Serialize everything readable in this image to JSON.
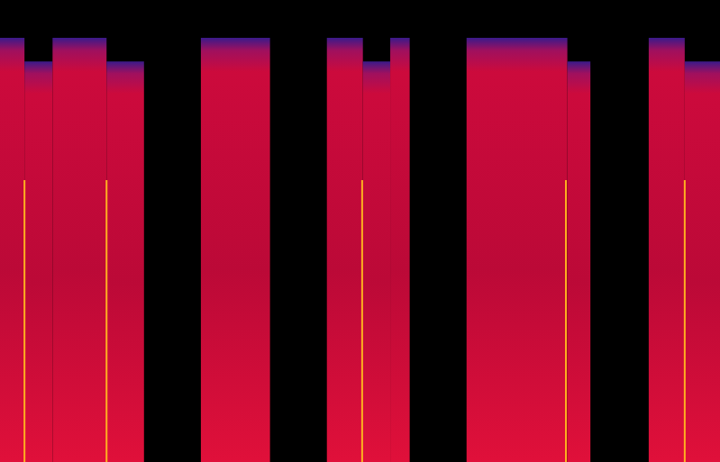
{
  "chart_data": {
    "type": "spectrogram",
    "xlim": [
      0,
      100
    ],
    "ylim": [
      0,
      100
    ],
    "tick_labels": false,
    "color": "#cc0a3c",
    "blocks": [
      {
        "start": 0,
        "end": 3.4,
        "top": 91.8
      },
      {
        "start": 3.4,
        "end": 7.3,
        "top": 86.7
      },
      {
        "start": 7.3,
        "end": 14.8,
        "top": 91.8
      },
      {
        "start": 14.8,
        "end": 20.0,
        "top": 86.7
      },
      {
        "start": 27.9,
        "end": 37.5,
        "top": 91.8
      },
      {
        "start": 45.4,
        "end": 50.4,
        "top": 91.8
      },
      {
        "start": 50.4,
        "end": 54.2,
        "top": 86.7
      },
      {
        "start": 54.2,
        "end": 56.9,
        "top": 91.8
      },
      {
        "start": 64.8,
        "end": 78.8,
        "top": 91.8
      },
      {
        "start": 78.8,
        "end": 82.0,
        "top": 86.7
      },
      {
        "start": 90.1,
        "end": 95.1,
        "top": 91.8
      },
      {
        "start": 95.1,
        "end": 100,
        "top": 86.7
      }
    ],
    "transients": [
      {
        "x": 3.4,
        "top": 61
      },
      {
        "x": 14.8,
        "top": 61
      },
      {
        "x": 50.3,
        "top": 61
      },
      {
        "x": 78.6,
        "top": 61
      },
      {
        "x": 95.1,
        "top": 61
      }
    ]
  }
}
